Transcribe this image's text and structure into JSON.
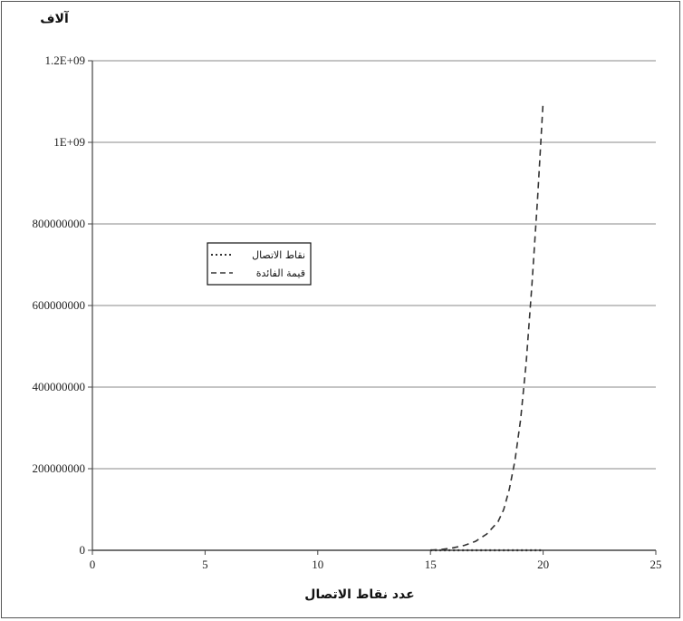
{
  "chart_data": {
    "type": "line",
    "ylabel": "آلاف",
    "xlabel": "عدد نقاط الاتصال",
    "xlim": [
      0,
      25
    ],
    "ylim": [
      0,
      1200000000
    ],
    "x_ticks": [
      "0",
      "5",
      "10",
      "15",
      "20",
      "25"
    ],
    "y_ticks": [
      "0",
      "200000000",
      "400000000",
      "600000000",
      "800000000",
      "1E+09",
      "1.2E+09"
    ],
    "grid": "horizontal",
    "legend_position": "left-middle",
    "series": [
      {
        "name": "نقاط الاتصال",
        "style": "dotted",
        "x": [
          15,
          16,
          17,
          18,
          19,
          20
        ],
        "y": [
          15,
          16,
          17,
          18,
          19,
          20
        ]
      },
      {
        "name": "قيمة الفائدة",
        "style": "dashed",
        "x": [
          15,
          15.5,
          16,
          16.5,
          17,
          17.5,
          18,
          18.25,
          18.5,
          18.75,
          19,
          19.25,
          19.5,
          19.75,
          20
        ],
        "y": [
          500000,
          2000000,
          6000000,
          12000000,
          22000000,
          40000000,
          70000000,
          100000000,
          150000000,
          220000000,
          320000000,
          460000000,
          650000000,
          860000000,
          1100000000
        ]
      }
    ],
    "colors": {
      "line": "#333333",
      "grid": "#888888",
      "axis": "#444444"
    }
  }
}
